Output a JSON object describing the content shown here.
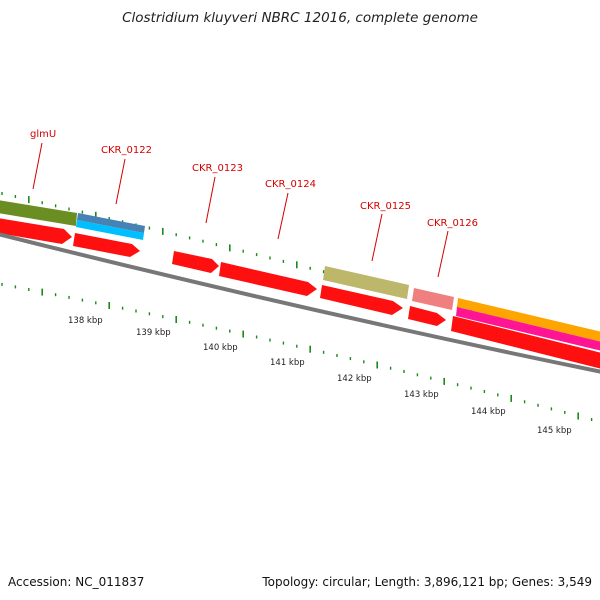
{
  "title": "Clostridium kluyveri NBRC 12016, complete genome",
  "accession_text": "Accession: NC_011837",
  "summary_text": "Topology: circular; Length: 3,896,121 bp; Genes: 3,549",
  "kbp_labels": [
    "138 kbp",
    "139 kbp",
    "140 kbp",
    "141 kbp",
    "142 kbp",
    "143 kbp",
    "144 kbp",
    "145 kbp"
  ],
  "gene_labels": [
    "glmU",
    "CKR_0122",
    "CKR_0123",
    "CKR_0124",
    "CKR_0125",
    "CKR_0126"
  ],
  "colors": {
    "gene_label": "#d40000",
    "tick": "#1a8a1a",
    "cds": "#ff1010",
    "backbone": "#777777",
    "glmU_feature": "#6b8e23",
    "CKR_0122_upper": "#4682b4",
    "CKR_0122_lower": "#00bfff",
    "CKR_0125_feature": "#bdb76b",
    "CKR_0126_feature": "#f08080",
    "next_orange": "#ffa500",
    "next_pink": "#ff1493"
  }
}
